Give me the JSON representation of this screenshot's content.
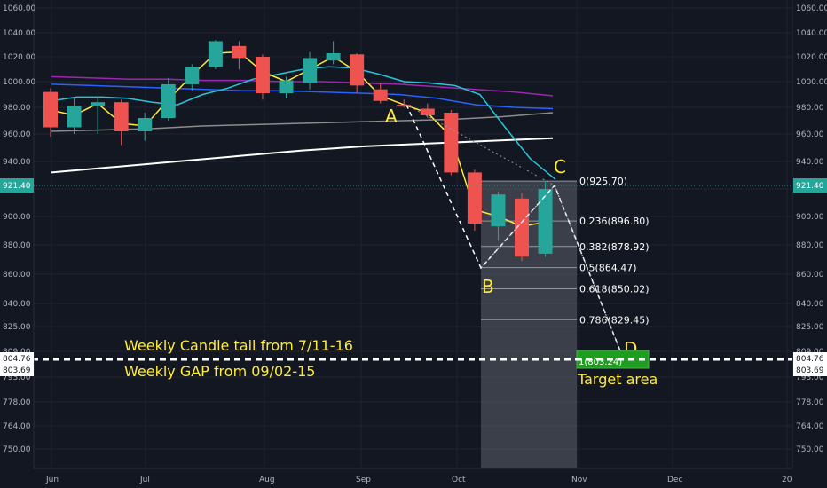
{
  "chart_data": {
    "type": "candlestick",
    "price_axis": {
      "ticks": [
        "1060.00",
        "1040.00",
        "1020.00",
        "1000.00",
        "980.00",
        "960.00",
        "940.00",
        "921.40",
        "900.00",
        "880.00",
        "860.00",
        "840.00",
        "825.00",
        "809.00",
        "804.76",
        "803.69",
        "793.00",
        "778.00",
        "764.00",
        "750.00"
      ],
      "current_price_label": "921.40",
      "right_markers": [
        "804.76",
        "803.69"
      ]
    },
    "time_axis": {
      "labels": [
        "Jun",
        "Jul",
        "Aug",
        "Sep",
        "Oct",
        "Nov",
        "Dec",
        "20"
      ]
    },
    "candles": [
      {
        "o": 992,
        "h": 995,
        "l": 958,
        "c": 965,
        "dir": "down"
      },
      {
        "o": 965,
        "h": 987,
        "l": 960,
        "c": 981,
        "dir": "up"
      },
      {
        "o": 981,
        "h": 987,
        "l": 960,
        "c": 984,
        "dir": "up"
      },
      {
        "o": 984,
        "h": 986,
        "l": 952,
        "c": 962,
        "dir": "down"
      },
      {
        "o": 962,
        "h": 976,
        "l": 955,
        "c": 972,
        "dir": "up"
      },
      {
        "o": 972,
        "h": 1003,
        "l": 970,
        "c": 998,
        "dir": "up"
      },
      {
        "o": 998,
        "h": 1014,
        "l": 993,
        "c": 1012,
        "dir": "up"
      },
      {
        "o": 1012,
        "h": 1034,
        "l": 1010,
        "c": 1033,
        "dir": "up"
      },
      {
        "o": 1029,
        "h": 1033,
        "l": 1010,
        "c": 1019,
        "dir": "down"
      },
      {
        "o": 1020,
        "h": 1022,
        "l": 986,
        "c": 991,
        "dir": "down"
      },
      {
        "o": 991,
        "h": 1004,
        "l": 987,
        "c": 1001,
        "dir": "up"
      },
      {
        "o": 999,
        "h": 1024,
        "l": 994,
        "c": 1019,
        "dir": "up"
      },
      {
        "o": 1017,
        "h": 1033,
        "l": 1014,
        "c": 1023,
        "dir": "up"
      },
      {
        "o": 1022,
        "h": 1023,
        "l": 991,
        "c": 997,
        "dir": "down"
      },
      {
        "o": 994,
        "h": 999,
        "l": 983,
        "c": 985,
        "dir": "down"
      },
      {
        "o": 982,
        "h": 986,
        "l": 980,
        "c": 981,
        "dir": "down"
      },
      {
        "o": 979,
        "h": 983,
        "l": 972,
        "c": 974,
        "dir": "down"
      },
      {
        "o": 976,
        "h": 978,
        "l": 930,
        "c": 932,
        "dir": "down"
      },
      {
        "o": 932,
        "h": 934,
        "l": 890,
        "c": 895,
        "dir": "down"
      },
      {
        "o": 893,
        "h": 918,
        "l": 883,
        "c": 916,
        "dir": "up"
      },
      {
        "o": 913,
        "h": 917,
        "l": 869,
        "c": 872,
        "dir": "down"
      },
      {
        "o": 874,
        "h": 926,
        "l": 872,
        "c": 920,
        "dir": "up"
      }
    ],
    "fib_levels": [
      {
        "label": "0(925.70)",
        "value": 925.7
      },
      {
        "label": "0.236(896.80)",
        "value": 896.8
      },
      {
        "label": "0.382(878.92)",
        "value": 878.92
      },
      {
        "label": "0.5(864.47)",
        "value": 864.47
      },
      {
        "label": "0.618(850.02)",
        "value": 850.02
      },
      {
        "label": "0.786(829.45)",
        "value": 829.45
      },
      {
        "label": "1(803.24)",
        "value": 803.24
      }
    ],
    "abcd_points": [
      {
        "label": "A",
        "price": 980
      },
      {
        "label": "B",
        "price": 862
      },
      {
        "label": "C",
        "price": 925.7
      },
      {
        "label": "D",
        "price": 803.24
      }
    ],
    "horizontal_levels": [
      804.76,
      803.69
    ],
    "annotations": [
      "Weekly Candle tail from 7/11-16",
      "Weekly GAP from 09/02-15",
      "Target area"
    ],
    "moving_averages": [
      {
        "color": "#ffffff",
        "points": [
          932,
          936,
          940,
          944,
          948,
          951,
          953,
          955,
          957
        ]
      },
      {
        "color": "#8c8c8c",
        "points": [
          962,
          963,
          964,
          966,
          967,
          968,
          969,
          970,
          971,
          973,
          976
        ]
      },
      {
        "color": "#2962ff",
        "points": [
          998,
          997,
          996,
          995,
          994,
          993,
          993,
          992,
          991,
          990,
          987,
          982,
          980,
          979
        ]
      },
      {
        "color": "#9c27b0",
        "points": [
          1004,
          1003,
          1002,
          1002,
          1001,
          1001,
          1000,
          1000,
          999,
          998,
          996,
          994,
          992,
          989
        ]
      },
      {
        "color": "#26c6da",
        "points": [
          985,
          988,
          988,
          987,
          984,
          982,
          990,
          995,
          1002,
          1006,
          1010,
          1012,
          1011,
          1006,
          1000,
          999,
          997,
          990,
          965,
          942,
          927
        ]
      },
      {
        "color": "#ffeb3b",
        "points": [
          978,
          974,
          983,
          968,
          966,
          986,
          1005,
          1023,
          1024,
          1008,
          1000,
          1010,
          1020,
          1008,
          989,
          982,
          976,
          958,
          905,
          900,
          893,
          896
        ]
      }
    ],
    "colors": {
      "up": "#26a69a",
      "down": "#ef5350",
      "accent": "#ffeb3b",
      "target": "#1e9e1e",
      "background": "#131722"
    }
  }
}
